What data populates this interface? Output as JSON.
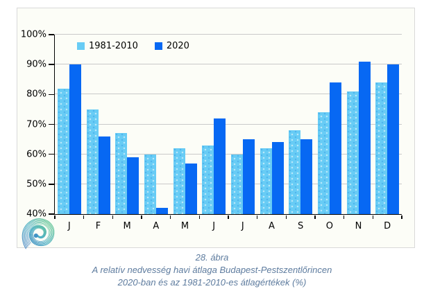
{
  "chart_data": {
    "type": "bar",
    "title": "",
    "categories": [
      "J",
      "F",
      "M",
      "A",
      "M",
      "J",
      "J",
      "A",
      "S",
      "O",
      "N",
      "D"
    ],
    "series": [
      {
        "name": "1981-2010",
        "color": "#68ccf5",
        "values": [
          82,
          75,
          67,
          60,
          62,
          63,
          60,
          62,
          68,
          74,
          81,
          84
        ]
      },
      {
        "name": "2020",
        "color": "#0768f3",
        "values": [
          90,
          66,
          59,
          42,
          57,
          72,
          65,
          64,
          65,
          84,
          91,
          90
        ]
      }
    ],
    "ylim": [
      40,
      100
    ],
    "ytick_step": 10,
    "ytick_labels": [
      "40%",
      "50%",
      "60%",
      "70%",
      "80%",
      "90%",
      "100%"
    ],
    "grid": true,
    "legend_position": "top-inside",
    "unit": "%"
  },
  "caption": {
    "line1": "28. ábra",
    "line2": "A relatív nedvesség havi átlaga Budapest-Pestszentlőrincen",
    "line3": "2020-ban és az 1981-2010-es átlagértékek (%)"
  },
  "icons": {
    "logo": "omsz-spiral-logo"
  },
  "colors": {
    "series_1981_2010": "#68ccf5",
    "series_2020": "#0768f3",
    "gridline": "#c9c9c9",
    "axis": "#000000",
    "caption_text": "#5d7b9e",
    "frame_border": "#d9d9d9",
    "frame_background": "#fcfdf7"
  }
}
